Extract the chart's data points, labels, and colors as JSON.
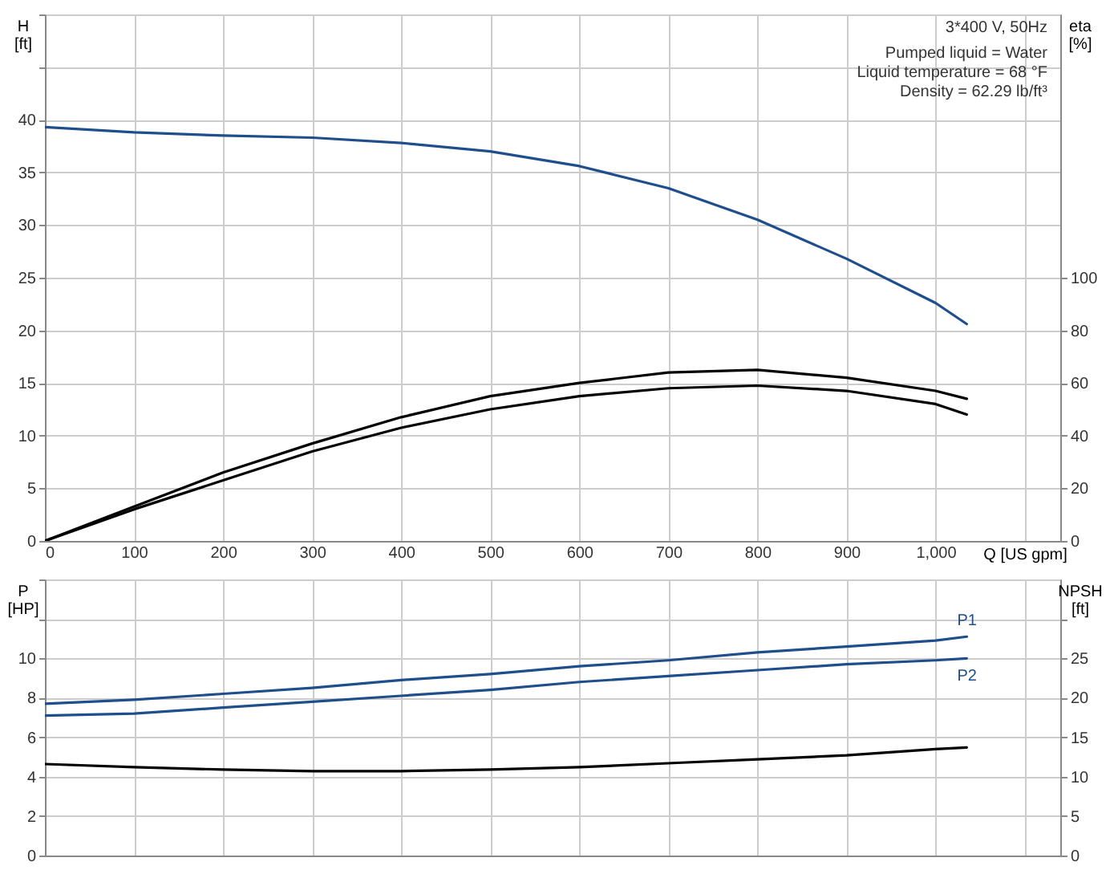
{
  "chart_data": [
    {
      "type": "line",
      "xlabel": "Q [US gpm]",
      "ylabel": "H [ft]",
      "y2label": "eta [%]",
      "xlim": [
        0,
        1140
      ],
      "xticks": [
        0,
        100,
        200,
        300,
        400,
        500,
        600,
        700,
        800,
        900,
        {
          "value": 1000,
          "label": "1,000"
        },
        {
          "value": 1100,
          "label": null
        }
      ],
      "ylim": [
        0,
        50
      ],
      "yticks": [
        0,
        5,
        10,
        15,
        20,
        25,
        30,
        35,
        40,
        {
          "value": 45,
          "label": null
        },
        {
          "value": 50,
          "label": null
        }
      ],
      "y2lim": [
        0,
        200
      ],
      "y2ticks": [
        0,
        20,
        40,
        60,
        80,
        100
      ],
      "grid": true,
      "annotations": [
        "3*400 V, 50Hz",
        "Pumped liquid = Water",
        "Liquid temperature = 68 °F",
        "Density = 62.29 lb/ft³"
      ],
      "series": [
        {
          "color": "#1f4e8c",
          "x": [
            0,
            100,
            200,
            300,
            400,
            500,
            600,
            700,
            800,
            900,
            1000,
            1035
          ],
          "values": [
            39.3,
            38.8,
            38.5,
            38.3,
            37.8,
            37.0,
            35.6,
            33.5,
            30.5,
            26.8,
            22.6,
            20.6
          ]
        },
        {
          "color": "#000000",
          "axis": "y2",
          "x": [
            0,
            100,
            200,
            300,
            400,
            500,
            600,
            700,
            800,
            900,
            1000,
            1035
          ],
          "values": [
            0,
            13,
            26,
            37,
            47,
            55,
            60,
            64,
            65,
            62,
            57,
            54
          ]
        },
        {
          "color": "#000000",
          "axis": "y2",
          "x": [
            0,
            100,
            200,
            300,
            400,
            500,
            600,
            700,
            800,
            900,
            1000,
            1035
          ],
          "values": [
            0,
            12,
            23,
            34,
            43,
            50,
            55,
            58,
            59,
            57,
            52,
            48
          ]
        }
      ]
    },
    {
      "type": "line",
      "ylabel": "P [HP]",
      "y2label": "NPSH [ft]",
      "xlim": [
        0,
        1140
      ],
      "ylim": [
        0,
        14
      ],
      "yticks": [
        0,
        2,
        4,
        6,
        8,
        10,
        {
          "value": 12,
          "label": null
        },
        {
          "value": 14,
          "label": null
        }
      ],
      "y2lim": [
        0,
        35
      ],
      "y2ticks": [
        0,
        5,
        10,
        15,
        20,
        25,
        {
          "value": 30,
          "label": null
        }
      ],
      "grid": true,
      "tick_labels": [
        "y",
        "y2"
      ],
      "series": [
        {
          "name": "P1",
          "color": "#1f4e8c",
          "x": [
            0,
            100,
            200,
            300,
            400,
            500,
            600,
            700,
            800,
            900,
            1000,
            1035
          ],
          "values": [
            7.7,
            7.9,
            8.2,
            8.5,
            8.9,
            9.2,
            9.6,
            9.9,
            10.3,
            10.6,
            10.9,
            11.1
          ]
        },
        {
          "name": "P2",
          "color": "#1f4e8c",
          "x": [
            0,
            100,
            200,
            300,
            400,
            500,
            600,
            700,
            800,
            900,
            1000,
            1035
          ],
          "values": [
            7.1,
            7.2,
            7.5,
            7.8,
            8.1,
            8.4,
            8.8,
            9.1,
            9.4,
            9.7,
            9.9,
            10.0
          ]
        },
        {
          "color": "#000000",
          "axis": "y2",
          "x": [
            0,
            100,
            200,
            300,
            400,
            500,
            600,
            700,
            800,
            900,
            1000,
            1035
          ],
          "values": [
            11.6,
            11.2,
            10.9,
            10.7,
            10.7,
            10.9,
            11.2,
            11.7,
            12.2,
            12.7,
            13.5,
            13.7
          ]
        }
      ]
    }
  ]
}
